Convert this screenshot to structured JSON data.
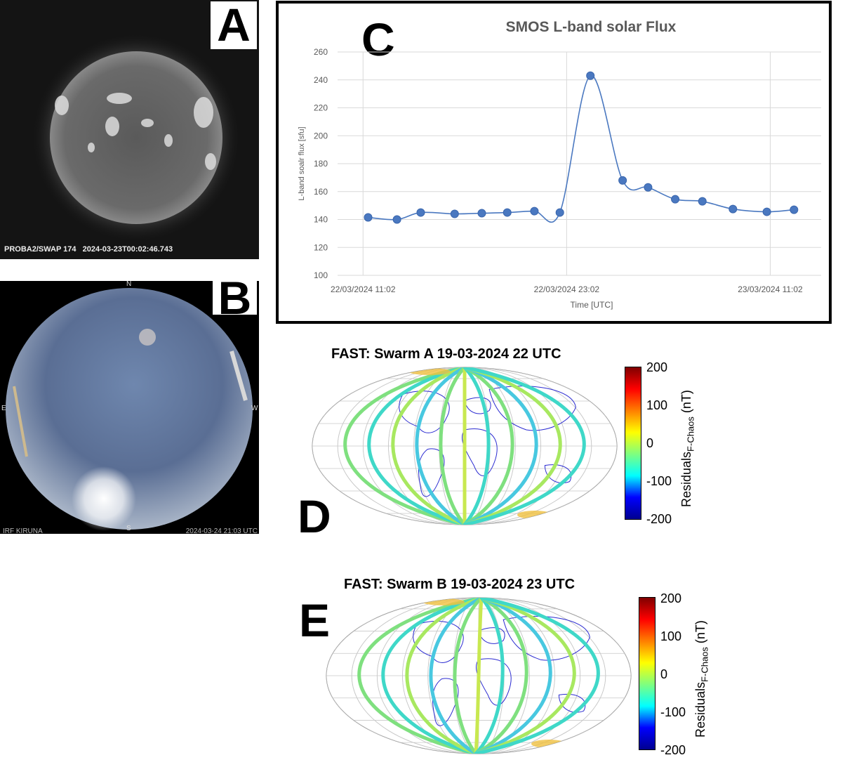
{
  "panel_a": {
    "letter": "A",
    "caption": "PROBA2/SWAP 174   2024-03-23T00:02:46.743"
  },
  "panel_b": {
    "letter": "B",
    "compass_n": "N",
    "compass_s": "S",
    "compass_e": "E",
    "compass_w": "W",
    "caption_left": "IRF KIRUNA",
    "caption_right": "2024-03-24 21:03 UTC"
  },
  "panel_c": {
    "letter": "C"
  },
  "chart_data": [
    {
      "type": "line",
      "title": "SMOS L-band solar Flux",
      "xlabel": "Time [UTC]",
      "ylabel": "L-band soalr flux [sfu]",
      "ylim": [
        100,
        260
      ],
      "yticks": [
        100,
        120,
        140,
        160,
        180,
        200,
        220,
        240,
        260
      ],
      "xtick_labels": [
        "22/03/2024 11:02",
        "22/03/2024 23:02",
        "23/03/2024 11:02"
      ],
      "xtick_hours": [
        0,
        12,
        24
      ],
      "xlim_hours": [
        -1.5,
        27
      ],
      "grid": true,
      "color": "#4a78c0",
      "x_hours": [
        0.3,
        2.0,
        3.4,
        5.4,
        7.0,
        8.5,
        10.1,
        11.6,
        13.4,
        15.3,
        16.8,
        18.4,
        20.0,
        21.8,
        23.8,
        25.4
      ],
      "y": [
        141.5,
        140,
        145,
        144,
        144.5,
        145,
        146,
        145,
        243,
        168,
        163,
        154.5,
        153,
        147.5,
        145.5,
        147
      ]
    },
    {
      "type": "heatmap",
      "title": "FAST: Swarm A 19-03-2024 22 UTC",
      "colorbar_label": "Residuals",
      "colorbar_label_sub": "F-Chaos",
      "colorbar_unit": "(nT)",
      "colorbar_ticks": [
        "200",
        "100",
        "0",
        "-100",
        "-200"
      ],
      "clim": [
        -200,
        200
      ]
    },
    {
      "type": "heatmap",
      "title": "FAST: Swarm B 19-03-2024 23 UTC",
      "colorbar_label": "Residuals",
      "colorbar_label_sub": "F-Chaos",
      "colorbar_unit": "(nT)",
      "colorbar_ticks": [
        "200",
        "100",
        "0",
        "-100",
        "-200"
      ],
      "clim": [
        -200,
        200
      ]
    }
  ],
  "panel_d": {
    "letter": "D"
  },
  "panel_e": {
    "letter": "E"
  }
}
